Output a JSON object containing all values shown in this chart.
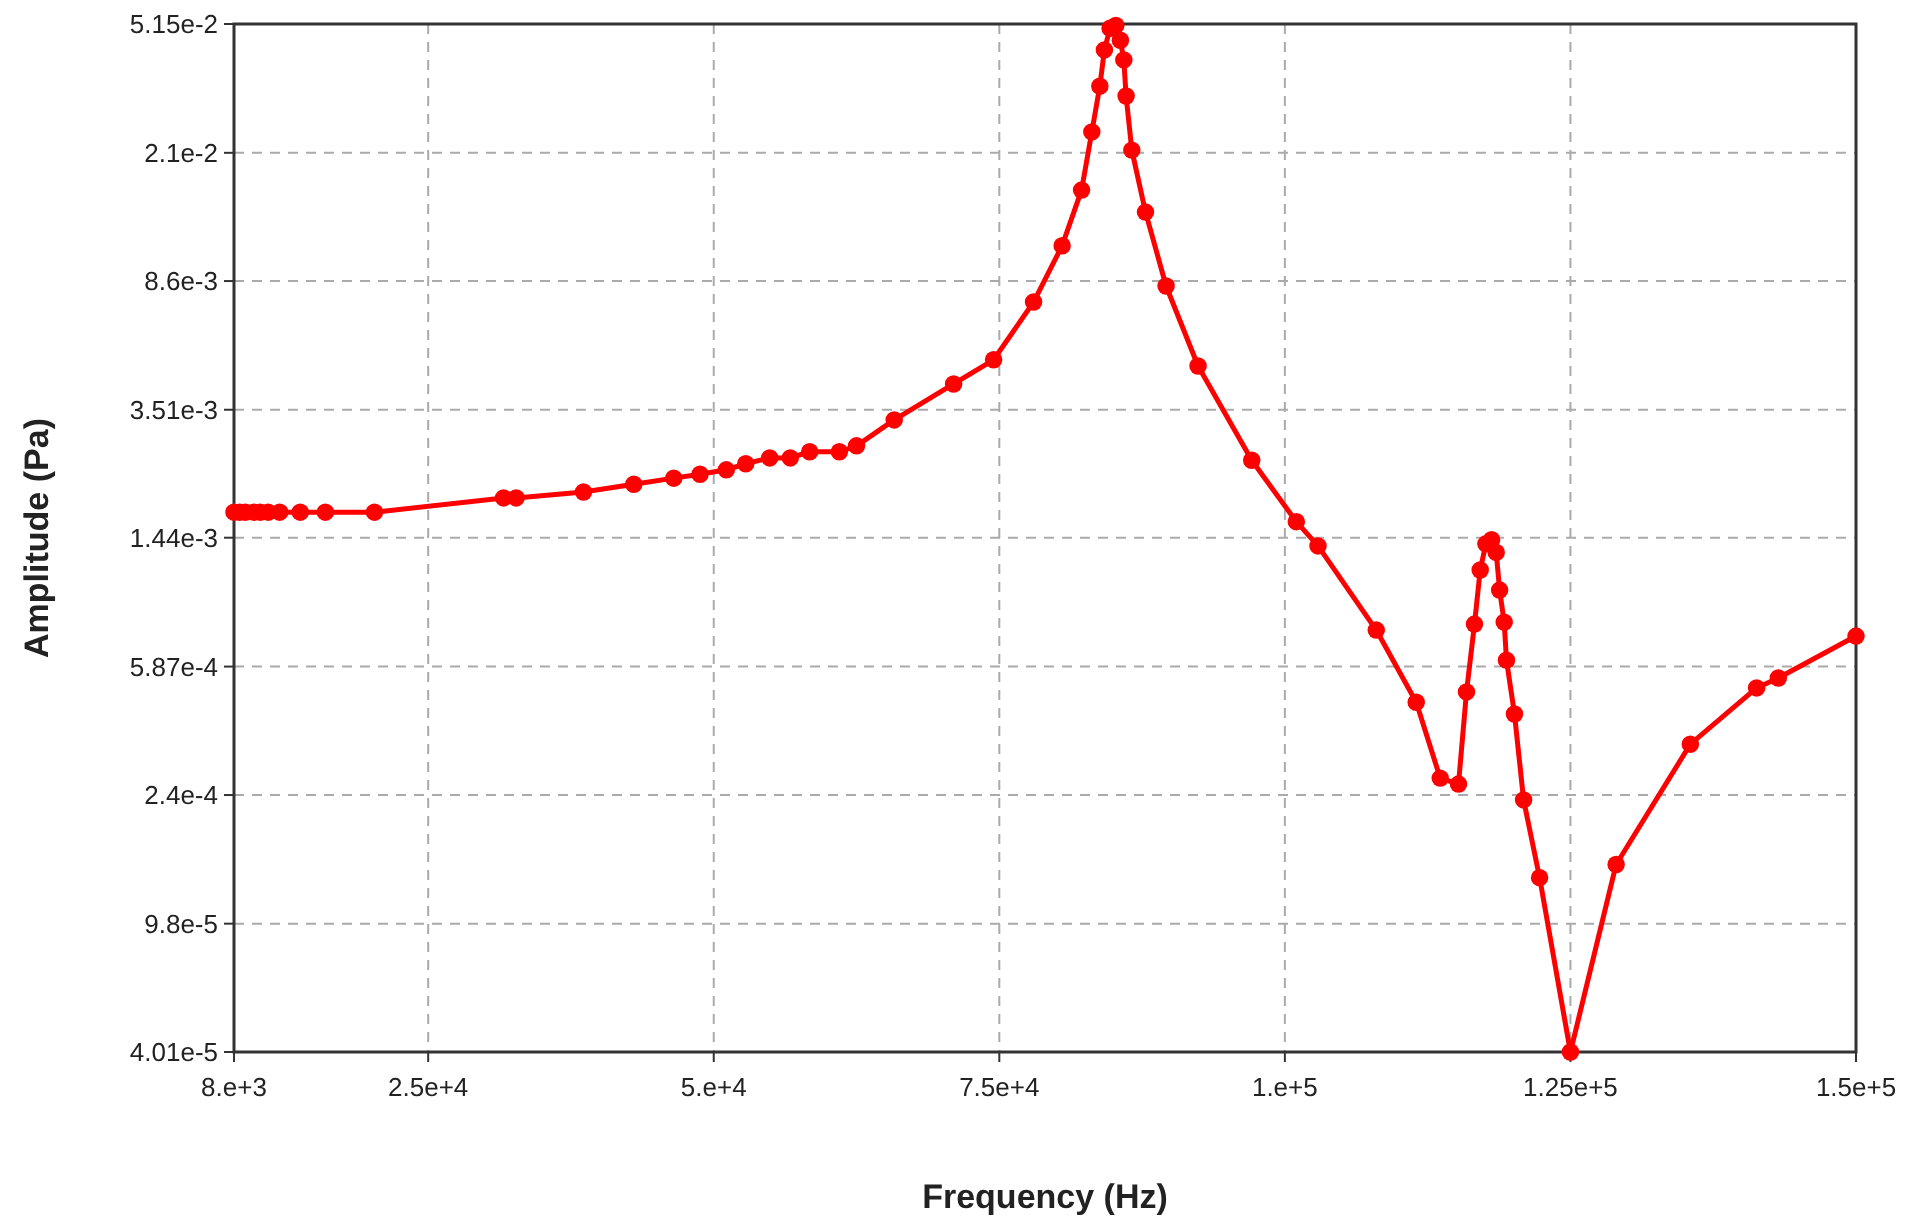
{
  "chart_data": {
    "type": "line",
    "xlabel": "Frequency (Hz)",
    "ylabel": "Amplitude (Pa)",
    "log": "y",
    "grid": true,
    "marker": "circle",
    "line_style": "solid",
    "xlim": [
      8000,
      150000
    ],
    "ylim": [
      4.01e-05,
      0.0515
    ],
    "xticks": [
      {
        "value": 8000,
        "label": "8.e+3"
      },
      {
        "value": 25000,
        "label": "2.5e+4"
      },
      {
        "value": 50000,
        "label": "5.e+4"
      },
      {
        "value": 75000,
        "label": "7.5e+4"
      },
      {
        "value": 100000,
        "label": "1.e+5"
      },
      {
        "value": 125000,
        "label": "1.25e+5"
      },
      {
        "value": 150000,
        "label": "1.5e+5"
      }
    ],
    "yticks": [
      {
        "value": 4.01e-05,
        "label": "4.01e-5"
      },
      {
        "value": 9.8e-05,
        "label": "9.8e-5"
      },
      {
        "value": 0.00024,
        "label": "2.4e-4"
      },
      {
        "value": 0.000587,
        "label": "5.87e-4"
      },
      {
        "value": 0.00144,
        "label": "1.44e-3"
      },
      {
        "value": 0.00351,
        "label": "3.51e-3"
      },
      {
        "value": 0.0086,
        "label": "8.6e-3"
      },
      {
        "value": 0.021,
        "label": "2.1e-2"
      },
      {
        "value": 0.0515,
        "label": "5.15e-2"
      }
    ],
    "series": [
      {
        "color": "#ff0000",
        "x": [
          8000,
          8500,
          9000,
          9750,
          10300,
          11000,
          12000,
          13800,
          16000,
          20300,
          31600,
          32700,
          38600,
          43000,
          46500,
          48800,
          51100,
          52800,
          54900,
          56700,
          58400,
          61000,
          62500,
          65800,
          71000,
          74500,
          78000,
          80500,
          82200,
          83100,
          83800,
          84200,
          84700,
          85200,
          85600,
          85900,
          86100,
          86600,
          87800,
          89600,
          92400,
          97100,
          101000,
          102900,
          108000,
          111500,
          113600,
          115200,
          115900,
          116600,
          117100,
          117600,
          118100,
          118500,
          118800,
          119200,
          119400,
          120100,
          120900,
          122300,
          125000,
          129000,
          135500,
          141300,
          143200,
          150000
        ],
        "values": [
          0.00172,
          0.00172,
          0.00172,
          0.00172,
          0.00172,
          0.00172,
          0.00172,
          0.00172,
          0.00172,
          0.00172,
          0.0019,
          0.0019,
          0.00198,
          0.00209,
          0.00218,
          0.00224,
          0.00231,
          0.00241,
          0.00251,
          0.00251,
          0.00262,
          0.00262,
          0.00273,
          0.00327,
          0.0042,
          0.00497,
          0.00743,
          0.011,
          0.0162,
          0.0243,
          0.0334,
          0.043,
          0.05,
          0.051,
          0.046,
          0.0401,
          0.0312,
          0.0214,
          0.0139,
          0.00831,
          0.00476,
          0.00247,
          0.00161,
          0.00136,
          0.000757,
          0.000458,
          0.00027,
          0.000259,
          0.000492,
          0.000789,
          0.00115,
          0.00138,
          0.00142,
          0.0013,
          0.001,
          0.0008,
          0.000614,
          0.000422,
          0.000232,
          0.000135,
          4.01e-05,
          0.000148,
          0.000342,
          0.000506,
          0.000542,
          0.000726
        ]
      }
    ]
  }
}
